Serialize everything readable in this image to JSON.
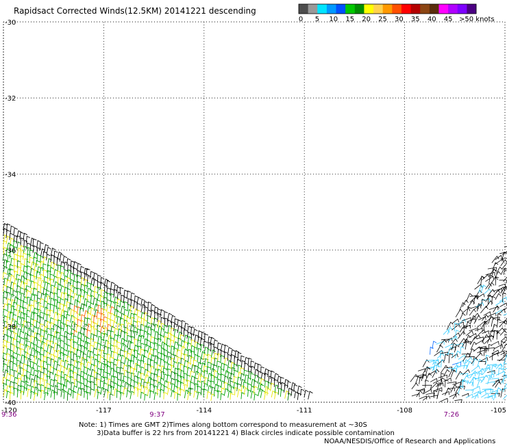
{
  "chart_data": {
    "type": "scatter",
    "title": "Rapidsact Corrected Winds(12.5KM) 20141221 descending",
    "x_ticks": [
      "-120",
      "-117",
      "-114",
      "-111",
      "-108",
      "-105"
    ],
    "y_ticks": [
      "-30",
      "-32",
      "-34",
      "-36",
      "-38",
      "-40"
    ],
    "xlim": [
      -120,
      -105
    ],
    "ylim": [
      -40,
      -30
    ],
    "grid": true,
    "time_labels": [
      {
        "text": "9:36",
        "lon": -119.9
      },
      {
        "text": "9:37",
        "lon": -115.4
      },
      {
        "text": "7:26",
        "lon": -106.6
      }
    ],
    "colorbar": {
      "labels": [
        "0",
        "5",
        "10",
        "15",
        "20",
        "25",
        "30",
        "35",
        "40",
        "45",
        ">50 knots"
      ],
      "colors": [
        "#4d4d4d",
        "#999999",
        "#00e5ff",
        "#0099ff",
        "#0050ff",
        "#00c800",
        "#008c00",
        "#ffff00",
        "#ffd24d",
        "#ff9900",
        "#ff5000",
        "#ff0000",
        "#b40000",
        "#8b4513",
        "#5a2d0c",
        "#ff00ff",
        "#b000ff",
        "#7d00ff",
        "#4b0082"
      ]
    },
    "swaths": [
      {
        "lon_min": -120,
        "lon_max": -110.6,
        "lat_top_at_west": -35.4,
        "lat_top_at_east": -40,
        "dominant_speed_knots": "15-25",
        "note": "green / yellow barbs, black barbs along the eastern edge"
      },
      {
        "lon_min": -107.8,
        "lon_max": -105,
        "lat_top_at_west": -39.4,
        "lat_top_at_east": -35.8,
        "dominant_speed_knots": "0-10",
        "note": "black barbs with light blue patches"
      }
    ]
  },
  "footer": {
    "note_line1": "Note: 1) Times are GMT 2)Times along bottom correspond to measurement at ~30S",
    "note_line2": "3)Data buffer is 22 hrs from 20141221 4) Black circles indicate possible contamination",
    "credit": "NOAA/NESDIS/Office of Research and Applications"
  }
}
